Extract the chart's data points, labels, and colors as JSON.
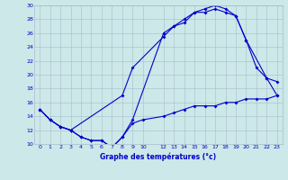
{
  "title": "Graphe des températures (°c)",
  "bg_color": "#cce8e8",
  "grid_color": "#aabbcc",
  "line_color": "#0000cc",
  "ylim": [
    10,
    30
  ],
  "yticks": [
    10,
    12,
    14,
    16,
    18,
    20,
    22,
    24,
    26,
    28,
    30
  ],
  "xticks": [
    0,
    1,
    2,
    3,
    4,
    5,
    6,
    7,
    8,
    9,
    10,
    12,
    13,
    14,
    15,
    16,
    17,
    18,
    19,
    20,
    21,
    22,
    23
  ],
  "line1_x": [
    0,
    1,
    2,
    3,
    4,
    5,
    6,
    7,
    8,
    9,
    12,
    13,
    14,
    15,
    16,
    17,
    18,
    19,
    20,
    21,
    22,
    23
  ],
  "line1_y": [
    15,
    13.5,
    12.5,
    12,
    11,
    10.5,
    10.5,
    9.5,
    11,
    13.5,
    26,
    27,
    27.5,
    29,
    29.5,
    30,
    29.5,
    28.5,
    25,
    21,
    19.5,
    17
  ],
  "line2_x": [
    0,
    1,
    2,
    3,
    8,
    9,
    12,
    13,
    14,
    15,
    16,
    17,
    18,
    19,
    20,
    22,
    23
  ],
  "line2_y": [
    15,
    13.5,
    12.5,
    12,
    17,
    21,
    25.5,
    27,
    28,
    29,
    29,
    29.5,
    29,
    28.5,
    25,
    19.5,
    19
  ],
  "line3_x": [
    0,
    1,
    2,
    3,
    4,
    5,
    6,
    7,
    8,
    9,
    10,
    12,
    13,
    14,
    15,
    16,
    17,
    18,
    19,
    20,
    21,
    22,
    23
  ],
  "line3_y": [
    15,
    13.5,
    12.5,
    12,
    11,
    10.5,
    10.5,
    9.5,
    11,
    13,
    13.5,
    14,
    14.5,
    15,
    15.5,
    15.5,
    15.5,
    16,
    16,
    16.5,
    16.5,
    16.5,
    17
  ]
}
